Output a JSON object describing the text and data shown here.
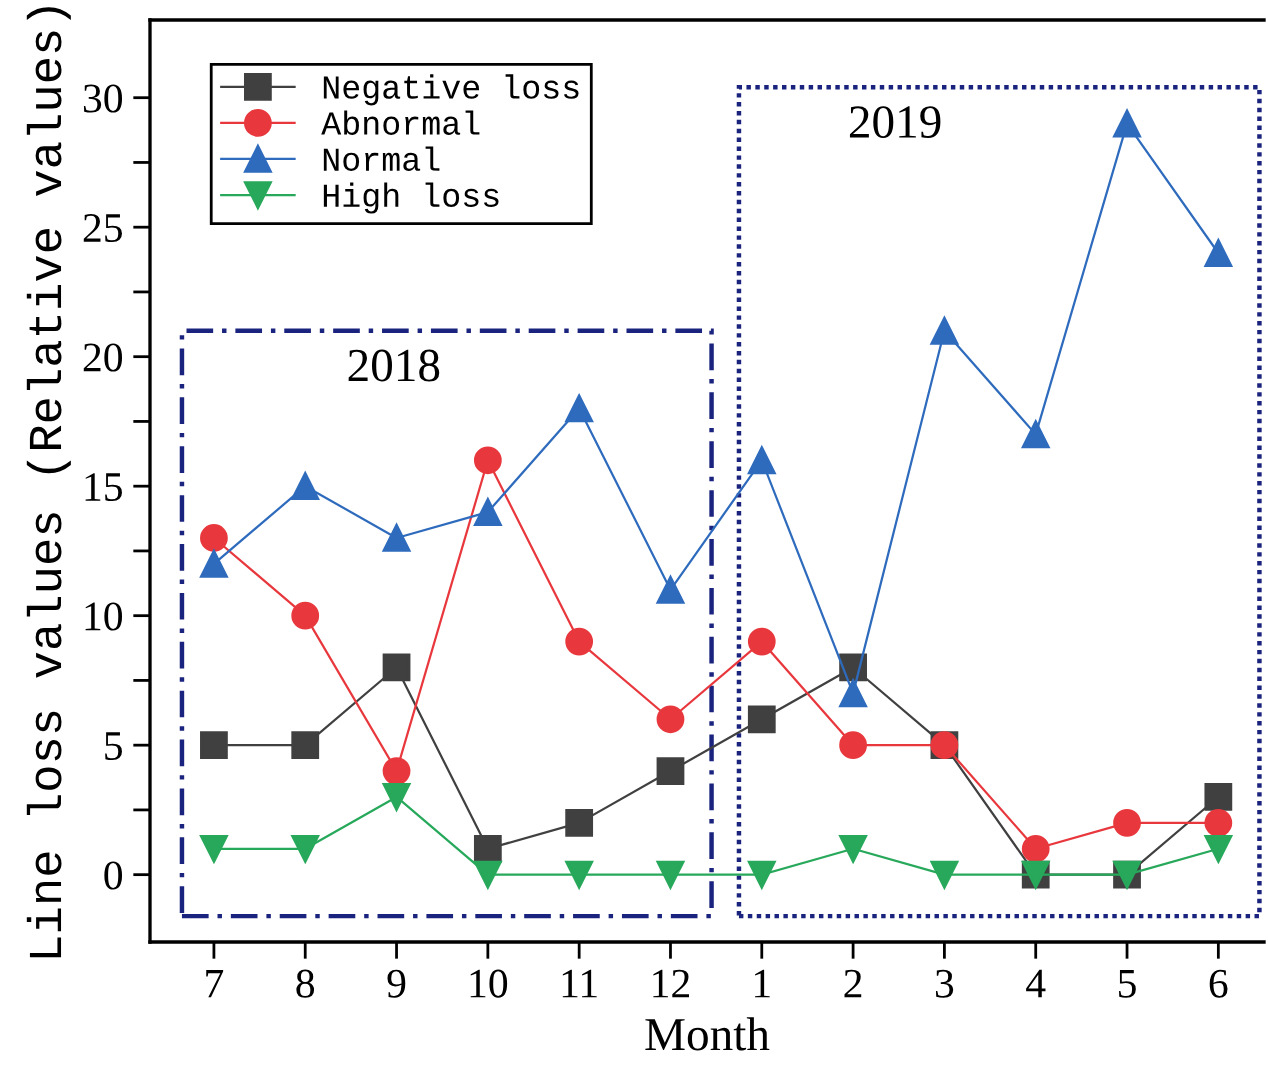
{
  "chart_data": {
    "type": "line",
    "xlabel": "Month",
    "ylabel": "Line loss values (Relative values)",
    "categories": [
      "7",
      "8",
      "9",
      "10",
      "11",
      "12",
      "1",
      "2",
      "3",
      "4",
      "5",
      "6"
    ],
    "series": [
      {
        "name": "Negative loss",
        "color": "#404040",
        "marker": "square",
        "values": [
          5,
          5,
          8,
          1,
          2,
          4,
          6,
          8,
          5,
          0,
          0,
          3
        ]
      },
      {
        "name": "Abnormal",
        "color": "#e8383d",
        "marker": "circle",
        "values": [
          13,
          10,
          4,
          16,
          9,
          6,
          9,
          5,
          5,
          1,
          2,
          2
        ]
      },
      {
        "name": "Normal",
        "color": "#2e6bbd",
        "marker": "triangle",
        "values": [
          12,
          15,
          13,
          14,
          18,
          11,
          16,
          7,
          21,
          17,
          29,
          24
        ]
      },
      {
        "name": "High loss",
        "color": "#27a85a",
        "marker": "triangle_down",
        "values": [
          1,
          1,
          3,
          0,
          0,
          0,
          0,
          1,
          0,
          0,
          0,
          1
        ]
      }
    ],
    "ylim": [
      -2.6,
      33
    ],
    "yticks": [
      0,
      {
        "value": 2.5,
        "label": null
      },
      5,
      {
        "value": 7.5,
        "label": null
      },
      10,
      {
        "value": 12.5,
        "label": null
      },
      15,
      {
        "value": 17.5,
        "label": null
      },
      20,
      {
        "value": 22.5,
        "label": null
      },
      25,
      {
        "value": 27.5,
        "label": null
      },
      30
    ],
    "annotations": [
      "2018",
      "2019"
    ],
    "legend": "top left",
    "grid": false,
    "line_style": "solid"
  }
}
